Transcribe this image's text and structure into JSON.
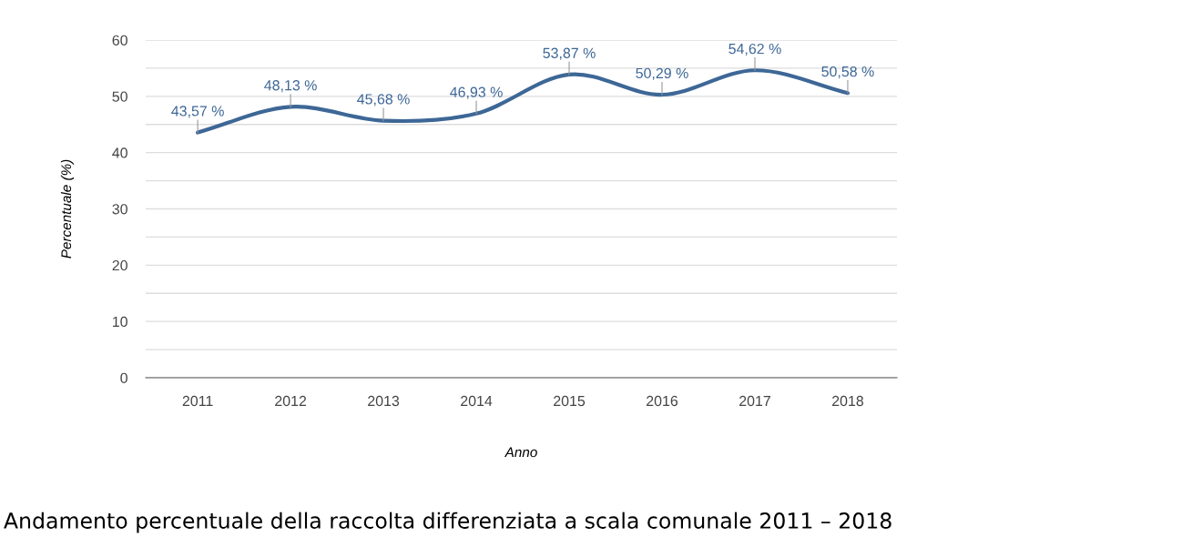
{
  "chart_data": {
    "type": "line",
    "title": "Andamento percentuale della raccolta differenziata a scala comunale 2011 – 2018",
    "xlabel": "Anno",
    "ylabel": "Percentuale (%)",
    "categories": [
      "2011",
      "2012",
      "2013",
      "2014",
      "2015",
      "2016",
      "2017",
      "2018"
    ],
    "series": [
      {
        "color": "#3d6796",
        "values": [
          43.57,
          48.13,
          45.68,
          46.93,
          53.87,
          50.29,
          54.62,
          50.58
        ],
        "value_labels": [
          "43,57 %",
          "48,13 %",
          "45,68 %",
          "46,93 %",
          "53,87 %",
          "50,29 %",
          "54,62 %",
          "50,58 %"
        ]
      }
    ],
    "ylim": [
      0,
      60
    ],
    "yticks": [
      0,
      {
        "value": 5,
        "label": null
      },
      10,
      {
        "value": 15,
        "label": null
      },
      20,
      {
        "value": 25,
        "label": null
      },
      30,
      {
        "value": 35,
        "label": null
      },
      40,
      {
        "value": 45,
        "label": null
      },
      50,
      {
        "value": 55,
        "label": null
      },
      60
    ],
    "grid": "y",
    "marker": "none",
    "line_style": "solid"
  }
}
